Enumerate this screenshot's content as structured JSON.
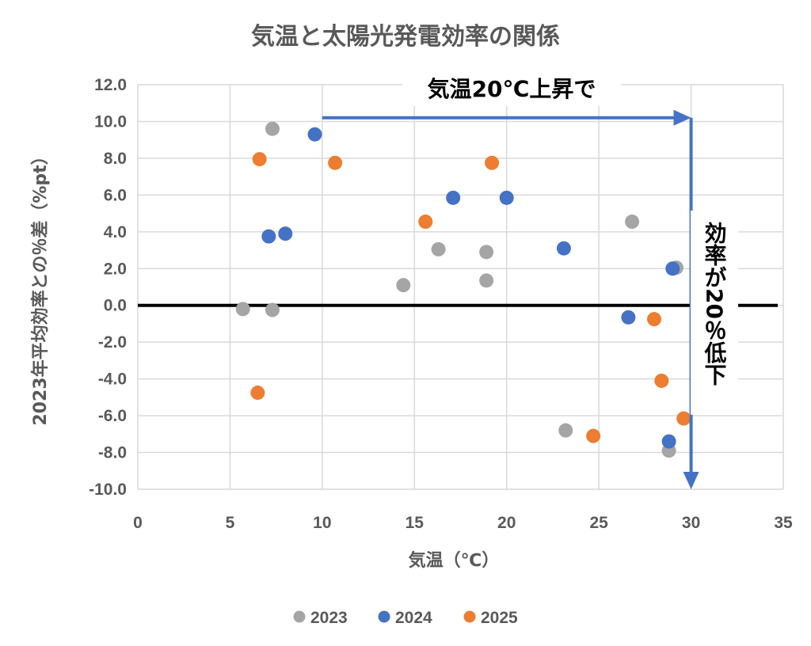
{
  "chart_data": {
    "type": "scatter",
    "title": "気温と太陽光発電効率の関係",
    "xlabel": "気温（℃）",
    "ylabel": "2023年平均効率との％差（%pt）",
    "xlim": [
      0,
      35
    ],
    "ylim": [
      -10,
      12
    ],
    "x_ticks": [
      "0",
      "5",
      "10",
      "15",
      "20",
      "25",
      "30",
      "35"
    ],
    "y_ticks": [
      "12.0",
      "10.0",
      "8.0",
      "6.0",
      "4.0",
      "2.0",
      "0.0",
      "-2.0",
      "-4.0",
      "-6.0",
      "-8.0",
      "-10.0"
    ],
    "grid": true,
    "legend_position": "bottom",
    "series": [
      {
        "name": "2023",
        "color": "#a5a5a5",
        "points": [
          [
            5.7,
            -0.2
          ],
          [
            7.3,
            9.6
          ],
          [
            7.3,
            -0.25
          ],
          [
            14.4,
            1.1
          ],
          [
            16.3,
            3.05
          ],
          [
            18.9,
            2.9
          ],
          [
            18.9,
            1.35
          ],
          [
            23.2,
            -6.8
          ],
          [
            26.8,
            4.55
          ],
          [
            29.2,
            2.05
          ],
          [
            28.8,
            -7.9
          ]
        ]
      },
      {
        "name": "2024",
        "color": "#4472c4",
        "points": [
          [
            9.6,
            9.3
          ],
          [
            7.1,
            3.75
          ],
          [
            8.0,
            3.9
          ],
          [
            17.1,
            5.85
          ],
          [
            20.0,
            5.85
          ],
          [
            23.1,
            3.1
          ],
          [
            26.6,
            -0.65
          ],
          [
            29.0,
            2.0
          ],
          [
            28.8,
            -7.4
          ]
        ]
      },
      {
        "name": "2025",
        "color": "#ed7d31",
        "points": [
          [
            6.6,
            7.95
          ],
          [
            10.7,
            7.75
          ],
          [
            19.2,
            7.75
          ],
          [
            15.6,
            4.55
          ],
          [
            6.5,
            -4.75
          ],
          [
            28.0,
            -0.75
          ],
          [
            28.4,
            -4.1
          ],
          [
            24.7,
            -7.1
          ],
          [
            29.6,
            -6.15
          ]
        ]
      }
    ],
    "zero_line": true,
    "annotations": [
      {
        "text": "気温20℃上昇で",
        "from": [
          10,
          10.2
        ],
        "to": [
          30,
          10.2
        ],
        "color": "#4472c4"
      },
      {
        "text": "効率が20％低下",
        "from": [
          30,
          10.2
        ],
        "to": [
          30,
          -10.0
        ],
        "color": "#4472c4"
      }
    ]
  }
}
